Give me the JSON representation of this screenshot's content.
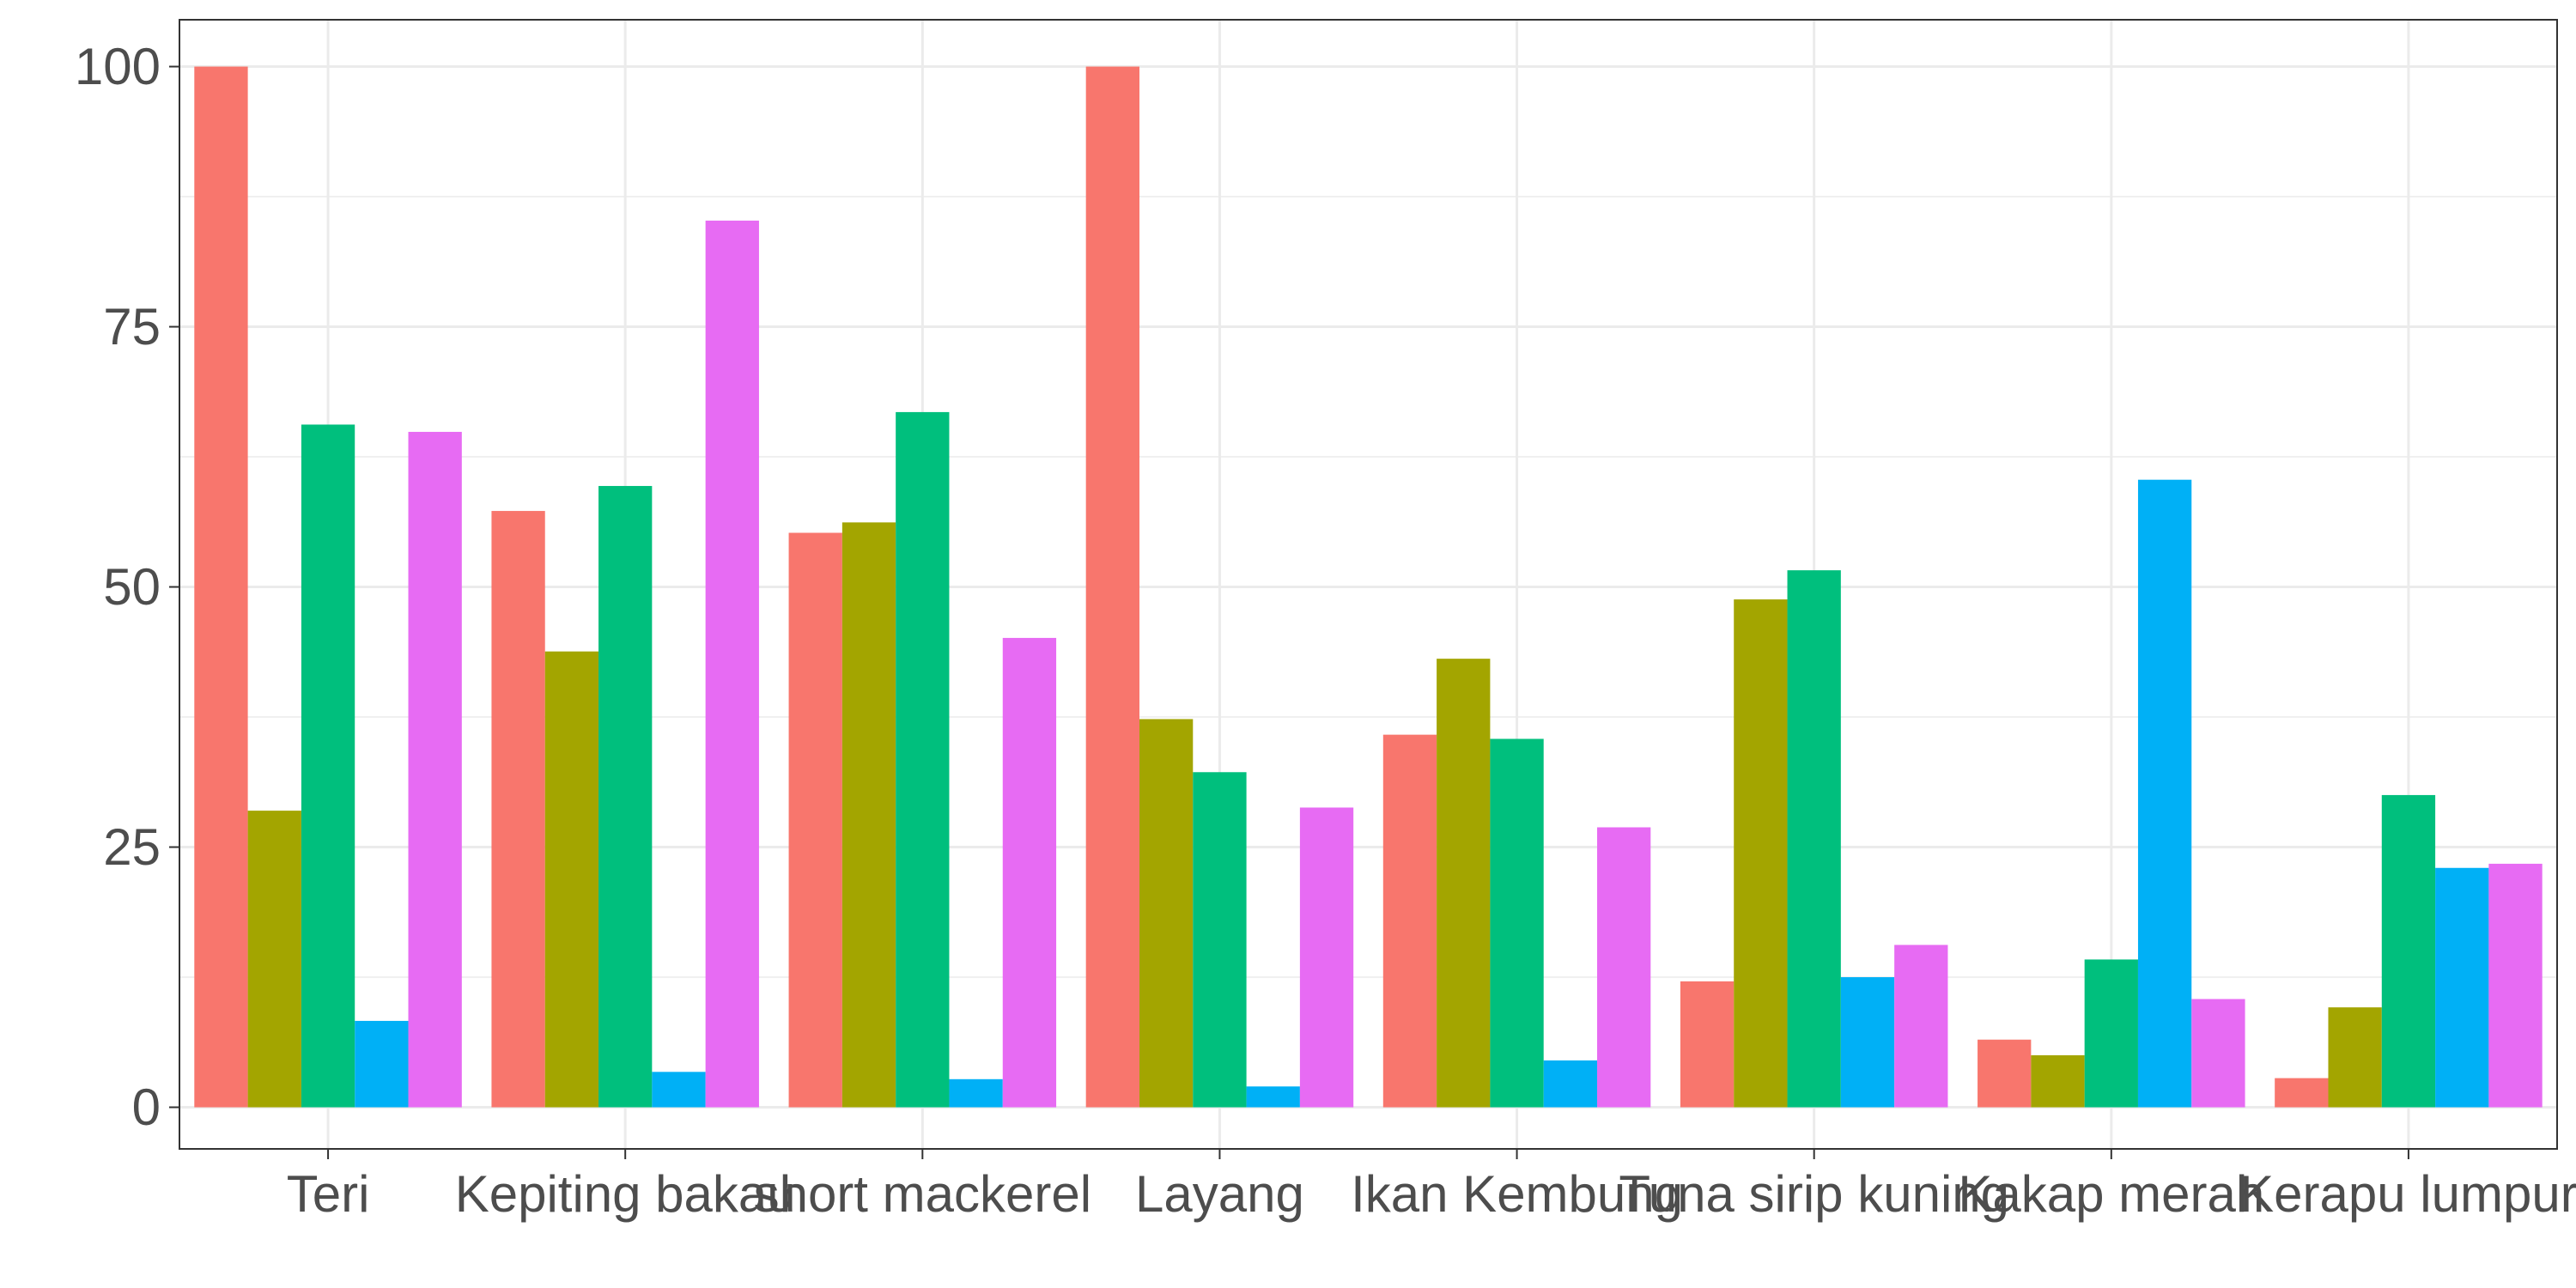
{
  "chart_data": {
    "type": "bar",
    "categories": [
      "Teri",
      "Kepiting bakau",
      "short mackerel",
      "Layang",
      "Ikan Kembung",
      "Tuna sirip kuning",
      "Kakap merah",
      "Kerapu lumpur"
    ],
    "series": [
      {
        "color": "#F8766D",
        "values": [
          100,
          57.3,
          55.2,
          100,
          35.8,
          12.1,
          6.5,
          2.8
        ]
      },
      {
        "color": "#A3A500",
        "values": [
          28.5,
          43.8,
          56.2,
          37.3,
          43.1,
          48.8,
          5.0,
          9.6
        ]
      },
      {
        "color": "#00BF7D",
        "values": [
          65.6,
          59.7,
          66.8,
          32.2,
          35.4,
          51.6,
          14.2,
          30.0
        ]
      },
      {
        "color": "#00B0F6",
        "values": [
          8.3,
          3.4,
          2.7,
          2.0,
          4.5,
          12.5,
          60.3,
          23.0
        ]
      },
      {
        "color": "#E76BF3",
        "values": [
          64.9,
          85.2,
          45.1,
          28.8,
          26.9,
          15.6,
          10.4,
          23.4
        ]
      }
    ],
    "y_ticks": [
      "0",
      "25",
      "50",
      "75",
      "100"
    ],
    "ylim": [
      -4,
      104.5
    ],
    "grid": true,
    "legend": "none",
    "title": "",
    "xlabel": "",
    "ylabel": ""
  }
}
